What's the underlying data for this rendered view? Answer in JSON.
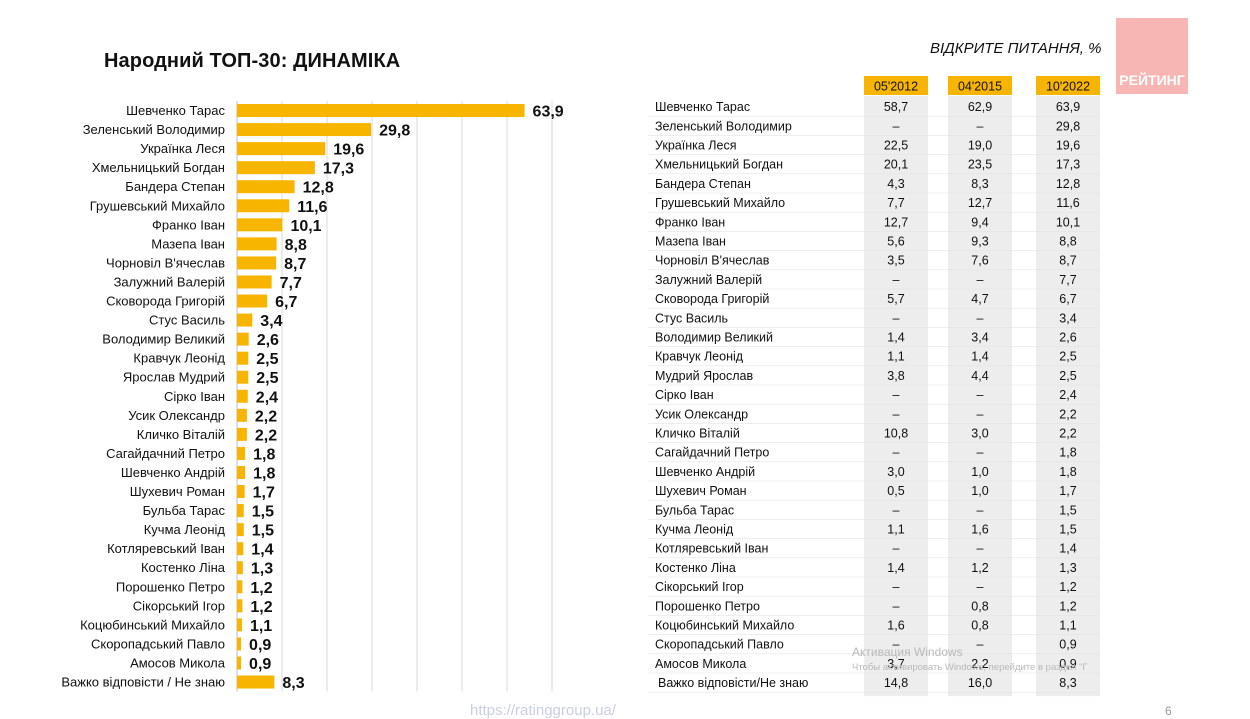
{
  "page": {
    "title": "Народний ТОП-30: ДИНАМІКА",
    "subtitle": "ВІДКРИТЕ ПИТАННЯ, %",
    "logo_text": "РЕЙТИНГ",
    "footer_url": "https://ratinggroup.ua/",
    "page_number": "6",
    "watermark_line1": "Активация Windows",
    "watermark_line2": "Чтобы активировать Windows, перейдите в раздел \"Г"
  },
  "colors": {
    "bar": "#F7B500",
    "header_fill": "#F7B500",
    "column_shade": "#EDEDED",
    "grid": "#D9D9D9",
    "logo": "#F7B5B4"
  },
  "chart_data": [
    {
      "type": "bar",
      "orientation": "horizontal",
      "title": "Народний ТОП-30: ДИНАМІКА",
      "categories": [
        "Шевченко Тарас",
        "Зеленський Володимир",
        "Українка Леся",
        "Хмельницький Богдан",
        "Бандера Степан",
        "Грушевський Михайло",
        "Франко Іван",
        "Мазепа Іван",
        "Чорновіл В'ячеслав",
        "Залужний Валерій",
        "Сковорода Григорій",
        "Стус Василь",
        "Володимир Великий",
        "Кравчук Леонід",
        "Ярослав Мудрий",
        "Сірко Іван",
        "Усик Олександр",
        "Кличко Віталій",
        "Сагайдачний Петро",
        "Шевченко Андрій",
        "Шухевич Роман",
        "Бульба Тарас",
        "Кучма Леонід",
        "Котляревський Іван",
        "Костенко Ліна",
        "Порошенко Петро",
        "Сікорський Ігор",
        "Коцюбинський Михайло",
        "Скоропадський Павло",
        "Амосов Микола",
        "Важко відповісти / Не знаю"
      ],
      "values": [
        63.9,
        29.8,
        19.6,
        17.3,
        12.8,
        11.6,
        10.1,
        8.8,
        8.7,
        7.7,
        6.7,
        3.4,
        2.6,
        2.5,
        2.5,
        2.4,
        2.2,
        2.2,
        1.8,
        1.8,
        1.7,
        1.5,
        1.5,
        1.4,
        1.3,
        1.2,
        1.2,
        1.1,
        0.9,
        0.9,
        8.3
      ],
      "value_labels": [
        "63,9",
        "29,8",
        "19,6",
        "17,3",
        "12,8",
        "11,6",
        "10,1",
        "8,8",
        "8,7",
        "7,7",
        "6,7",
        "3,4",
        "2,6",
        "2,5",
        "2,5",
        "2,4",
        "2,2",
        "2,2",
        "1,8",
        "1,8",
        "1,7",
        "1,5",
        "1,5",
        "1,4",
        "1,3",
        "1,2",
        "1,2",
        "1,1",
        "0,9",
        "0,9",
        "8,3"
      ],
      "xlim": [
        0,
        70
      ],
      "grid": true
    },
    {
      "type": "table",
      "columns": [
        "05'2012",
        "04'2015",
        "10'2022"
      ],
      "rows": [
        [
          "Шевченко Тарас",
          "58,7",
          "62,9",
          "63,9"
        ],
        [
          "Зеленський Володимир",
          "–",
          "–",
          "29,8"
        ],
        [
          "Українка Леся",
          "22,5",
          "19,0",
          "19,6"
        ],
        [
          "Хмельницький Богдан",
          "20,1",
          "23,5",
          "17,3"
        ],
        [
          "Бандера Степан",
          "4,3",
          "8,3",
          "12,8"
        ],
        [
          "Грушевський Михайло",
          "7,7",
          "12,7",
          "11,6"
        ],
        [
          "Франко Іван",
          "12,7",
          "9,4",
          "10,1"
        ],
        [
          "Мазепа Іван",
          "5,6",
          "9,3",
          "8,8"
        ],
        [
          "Чорновіл В'ячеслав",
          "3,5",
          "7,6",
          "8,7"
        ],
        [
          "Залужний Валерій",
          "–",
          "–",
          "7,7"
        ],
        [
          "Сковорода Григорій",
          "5,7",
          "4,7",
          "6,7"
        ],
        [
          "Стус Василь",
          "–",
          "–",
          "3,4"
        ],
        [
          "Володимир Великий",
          "1,4",
          "3,4",
          "2,6"
        ],
        [
          "Кравчук Леонід",
          "1,1",
          "1,4",
          "2,5"
        ],
        [
          "Мудрий Ярослав",
          "3,8",
          "4,4",
          "2,5"
        ],
        [
          "Сірко Іван",
          "–",
          "–",
          "2,4"
        ],
        [
          "Усик Олександр",
          "–",
          "–",
          "2,2"
        ],
        [
          "Кличко Віталій",
          "10,8",
          "3,0",
          "2,2"
        ],
        [
          "Сагайдачний Петро",
          "–",
          "–",
          "1,8"
        ],
        [
          "Шевченко Андрій",
          "3,0",
          "1,0",
          "1,8"
        ],
        [
          "Шухевич Роман",
          "0,5",
          "1,0",
          "1,7"
        ],
        [
          "Бульба Тарас",
          "–",
          "–",
          "1,5"
        ],
        [
          "Кучма Леонід",
          "1,1",
          "1,6",
          "1,5"
        ],
        [
          "Котляревський Іван",
          "–",
          "–",
          "1,4"
        ],
        [
          "Костенко Ліна",
          "1,4",
          "1,2",
          "1,3"
        ],
        [
          "Сікорський Ігор",
          "–",
          "–",
          "1,2"
        ],
        [
          "Порошенко Петро",
          "–",
          "0,8",
          "1,2"
        ],
        [
          "Коцюбинський Михайло",
          "1,6",
          "0,8",
          "1,1"
        ],
        [
          "Скоропадський Павло",
          "–",
          "–",
          "0,9"
        ],
        [
          "Амосов Микола",
          "3,7",
          "2,2",
          "0,9"
        ],
        [
          "Важко відповісти/Не знаю",
          "14,8",
          "16,0",
          "8,3"
        ]
      ]
    }
  ]
}
